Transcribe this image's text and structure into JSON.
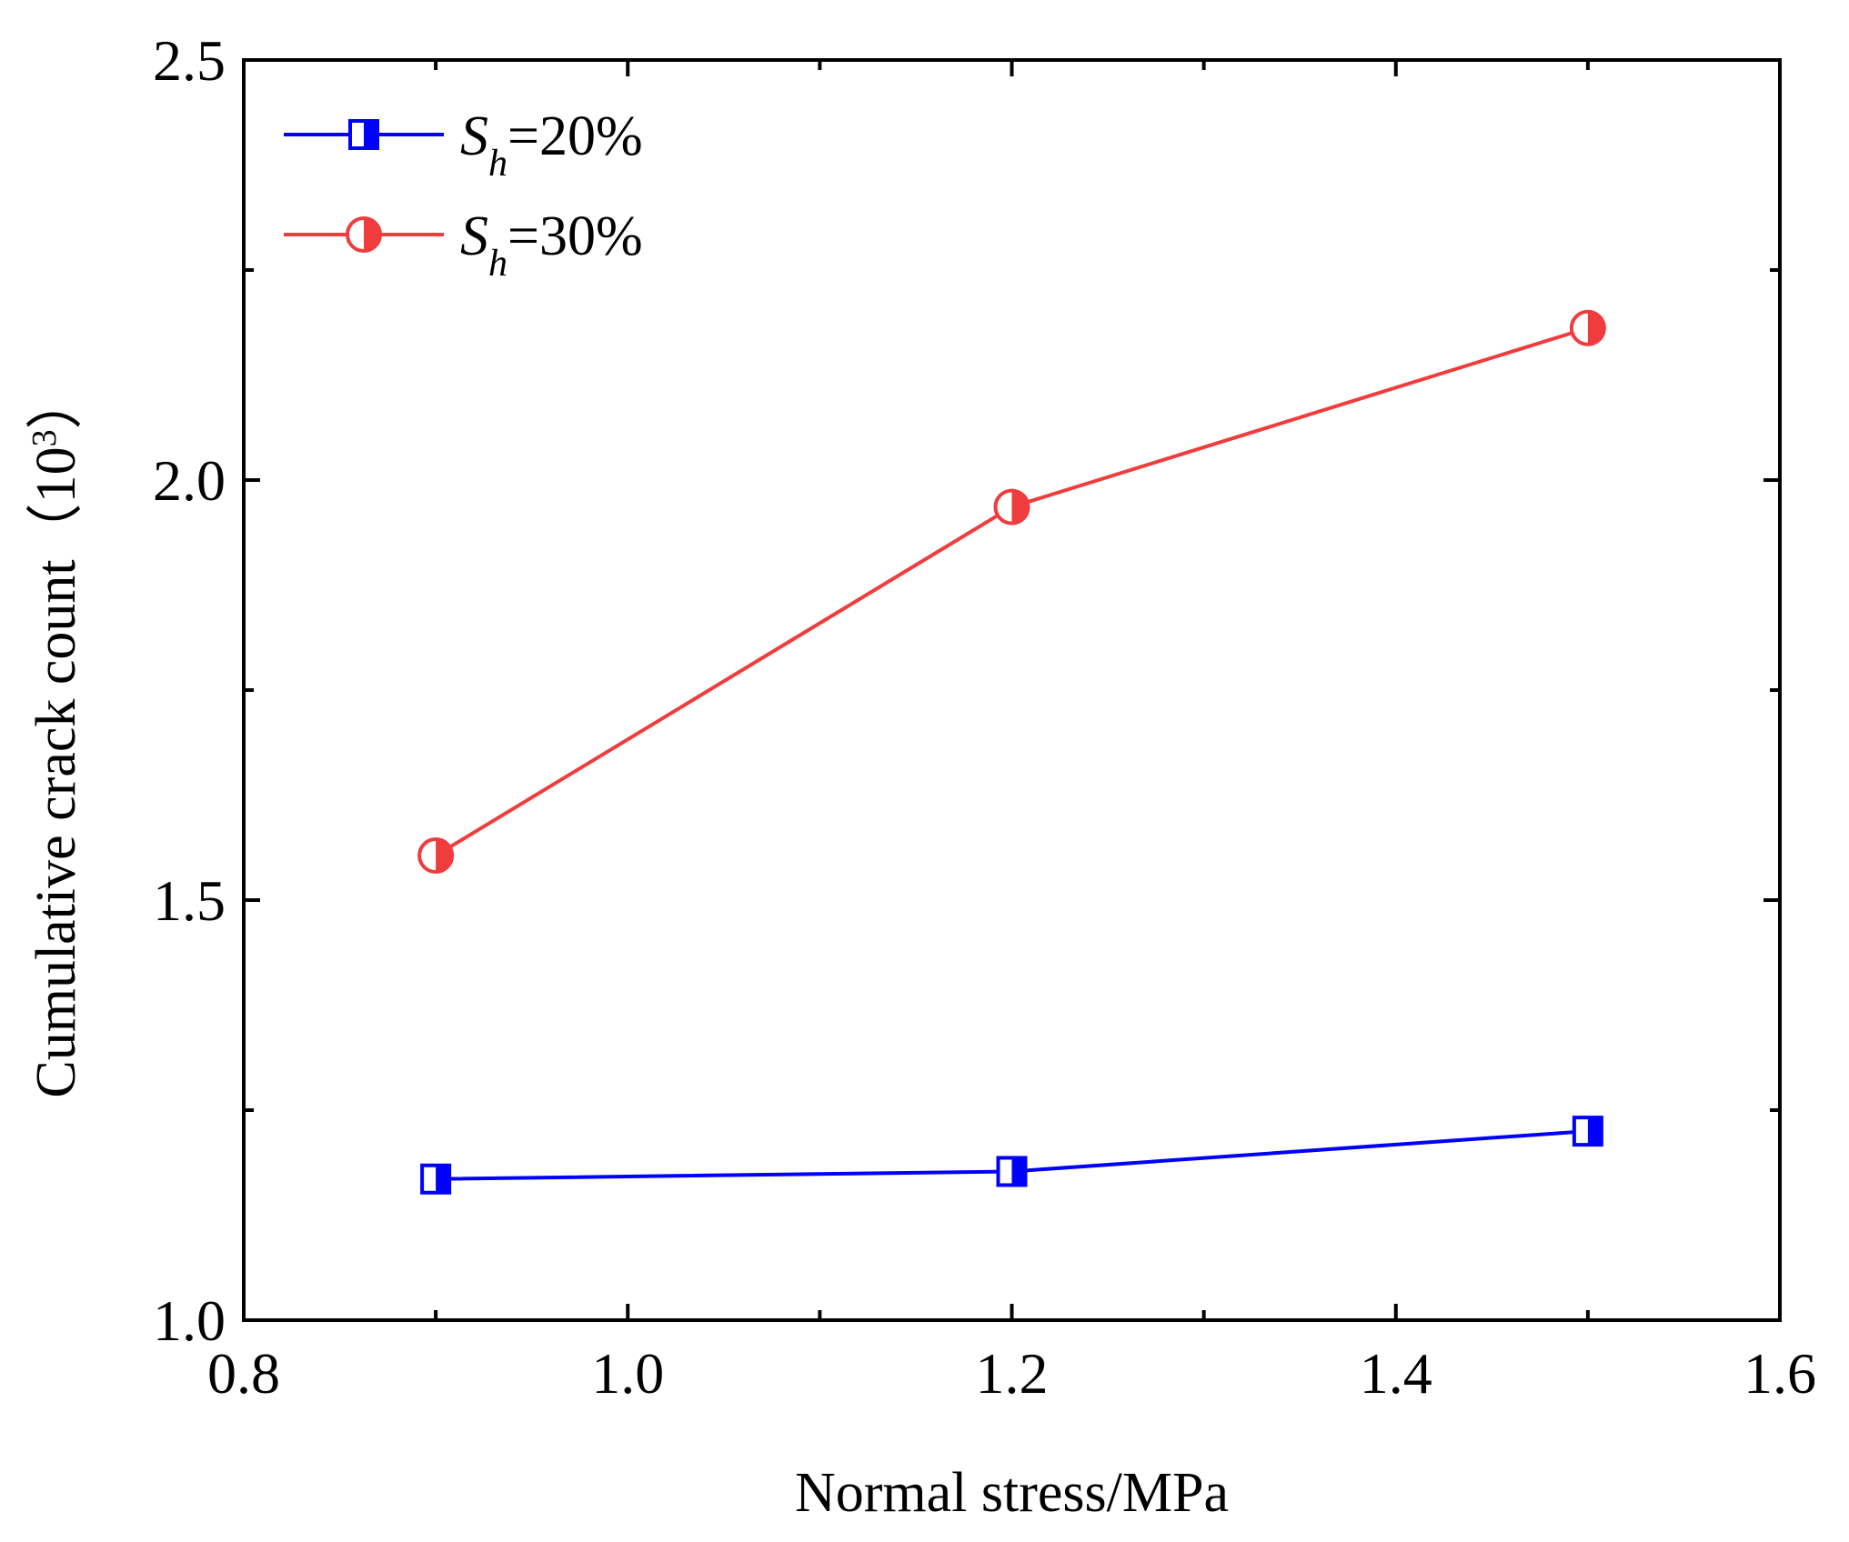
{
  "chart_data": {
    "type": "line",
    "xlabel": "Normal stress/MPa",
    "ylabel_text": "Cumulative crack count（10",
    "ylabel_sup": "3",
    "ylabel_close": "）",
    "xlim": [
      0.8,
      1.6
    ],
    "ylim": [
      1.0,
      2.5
    ],
    "x_ticks": [
      "0.8",
      "1.0",
      "1.2",
      "1.4",
      "1.6"
    ],
    "y_ticks": [
      "1.0",
      "1.5",
      "2.0",
      "2.5"
    ],
    "grid": false,
    "legend_position": "top-left",
    "series": [
      {
        "legend_italic": "S",
        "legend_sub": "h",
        "legend_rest": "=20%",
        "color": "#0000ff",
        "marker": "square-half-filled",
        "x": [
          0.9,
          1.2,
          1.5
        ],
        "y": [
          1.168,
          1.177,
          1.225
        ]
      },
      {
        "legend_italic": "S",
        "legend_sub": "h",
        "legend_rest": "=30%",
        "color": "#f03c3c",
        "marker": "circle-half-filled",
        "x": [
          0.9,
          1.2,
          1.5
        ],
        "y": [
          1.553,
          1.968,
          2.181
        ]
      }
    ]
  }
}
